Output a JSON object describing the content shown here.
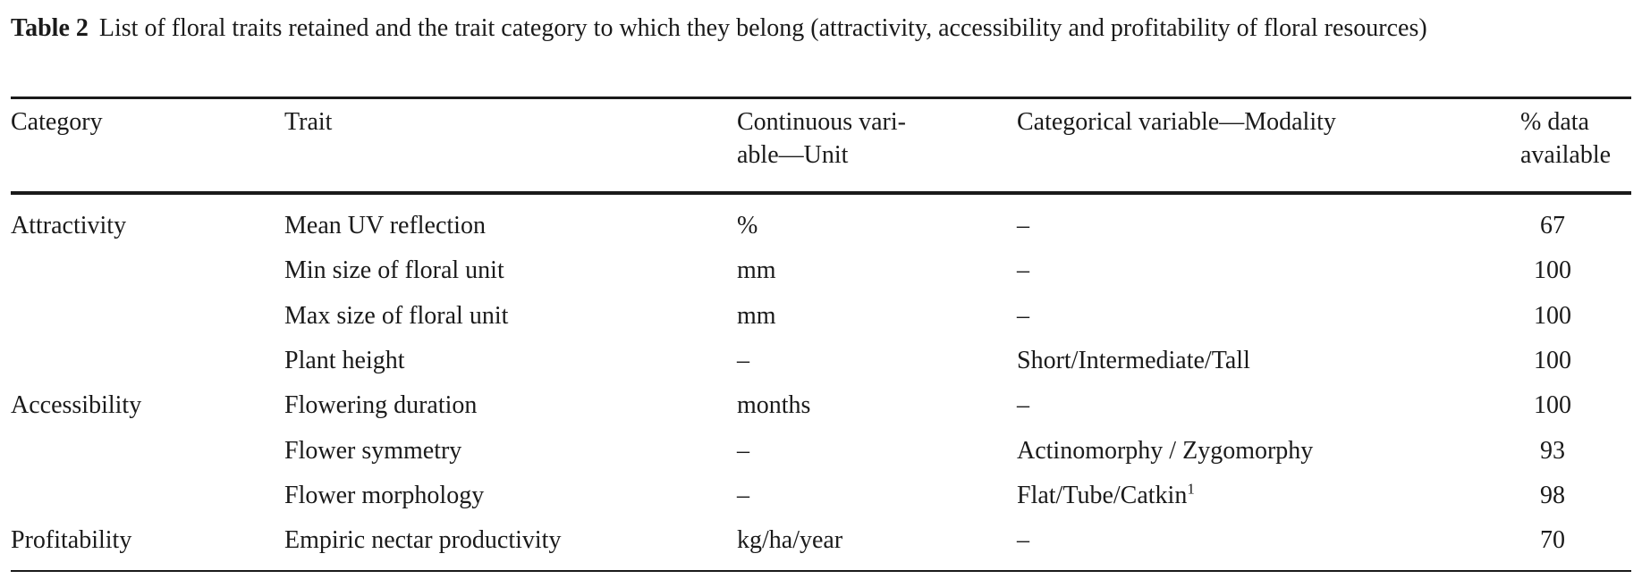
{
  "caption": {
    "label": "Table 2",
    "text": "List of floral traits retained and the trait category to which they belong (attractivity, accessibility and profitability of floral resources)"
  },
  "headers": {
    "category": "Category",
    "trait": "Trait",
    "continuous_line1": "Continuous vari-",
    "continuous_line2": "able—Unit",
    "categorical": "Categorical variable—Modality",
    "data_line1": "% data",
    "data_line2": "available"
  },
  "rows": [
    {
      "category": "Attractivity",
      "trait": "Mean UV reflection",
      "unit": "%",
      "modality": "–",
      "modality_sup": "",
      "available": "67"
    },
    {
      "category": "",
      "trait": "Min size of floral unit",
      "unit": "mm",
      "modality": "–",
      "modality_sup": "",
      "available": "100"
    },
    {
      "category": "",
      "trait": "Max size of floral unit",
      "unit": "mm",
      "modality": "–",
      "modality_sup": "",
      "available": "100"
    },
    {
      "category": "",
      "trait": "Plant height",
      "unit": "–",
      "modality": "Short/Intermediate/Tall",
      "modality_sup": "",
      "available": "100"
    },
    {
      "category": "Accessibility",
      "trait": "Flowering duration",
      "unit": "months",
      "modality": "–",
      "modality_sup": "",
      "available": "100"
    },
    {
      "category": "",
      "trait": "Flower symmetry",
      "unit": "–",
      "modality": "Actinomorphy / Zygomorphy",
      "modality_sup": "",
      "available": "93"
    },
    {
      "category": "",
      "trait": "Flower morphology",
      "unit": "–",
      "modality": "Flat/Tube/Catkin",
      "modality_sup": "1",
      "available": "98"
    },
    {
      "category": "Profitability",
      "trait": "Empiric nectar productivity",
      "unit": "kg/ha/year",
      "modality": "–",
      "modality_sup": "",
      "available": "70"
    }
  ]
}
